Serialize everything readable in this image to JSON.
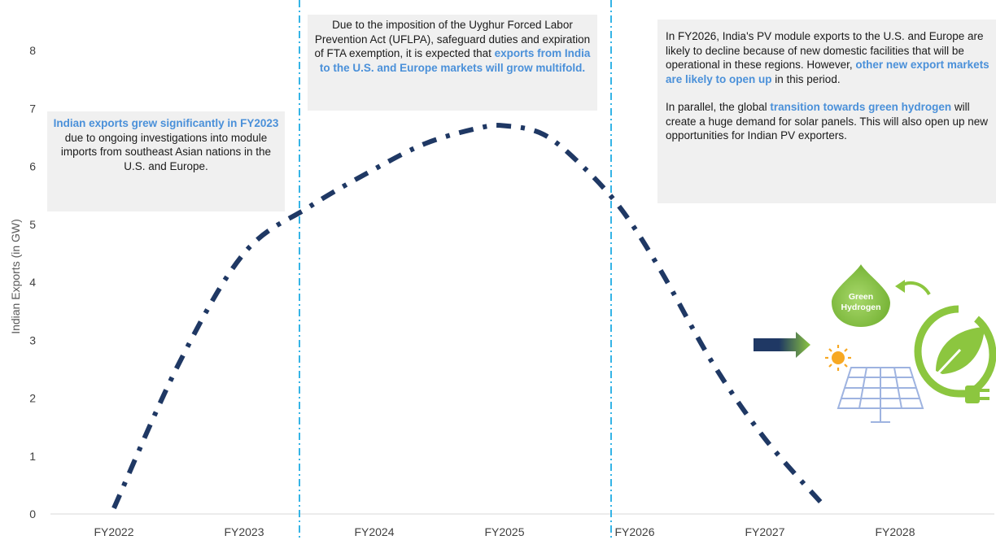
{
  "chart_data": {
    "type": "line",
    "ylabel": "Indian Exports (in GW)",
    "xlabel": "",
    "ylim": [
      0,
      8
    ],
    "yticks": [
      "0",
      "1",
      "2",
      "3",
      "4",
      "5",
      "6",
      "7",
      "8"
    ],
    "categories": [
      "FY2022",
      "FY2023",
      "FY2024",
      "FY2025",
      "FY2026",
      "FY2027",
      "FY2028"
    ],
    "grid": false,
    "series": [
      {
        "x": [
          0.0,
          0.5,
          1.0,
          1.5,
          2.0,
          2.4,
          2.8,
          3.0,
          3.3,
          3.6,
          3.9,
          4.2,
          4.6,
          5.0,
          5.45
        ],
        "values": [
          0.1,
          2.6,
          4.5,
          5.3,
          5.95,
          6.4,
          6.66,
          6.7,
          6.55,
          6.0,
          5.25,
          4.2,
          2.6,
          1.3,
          0.15
        ],
        "color": "#1f3864",
        "style": "dash-dot"
      }
    ]
  },
  "annotations": {
    "left": {
      "highlight": "Indian exports grew significantly in FY2023",
      "text": " due to ongoing investigations into module imports from southeast Asian nations in the U.S. and Europe."
    },
    "middle": {
      "text": "Due to the imposition of the Uyghur Forced Labor Prevention Act (UFLPA), safeguard duties and expiration of FTA exemption, it is expected that ",
      "highlight": "exports from India to the U.S. and Europe markets will grow multifold."
    },
    "right": {
      "p1_text_a": "In FY2026, India's PV module exports to the U.S. and Europe are likely to decline because of new domestic facilities that will be operational in these regions. However, ",
      "p1_highlight": "other new export markets are likely to open up",
      "p1_text_b": " in this period.",
      "p2_text_a": "In parallel, the global ",
      "p2_highlight": "transition towards green hydrogen",
      "p2_text_b": " will create a huge demand for solar panels. This will also open up new opportunities for Indian PV exporters."
    }
  },
  "illustration": {
    "drop_label_line1": "Green",
    "drop_label_line2": "Hydrogen",
    "icons": [
      "arrow-right-icon",
      "sun-icon",
      "solar-panel-icon",
      "green-hydrogen-drop-icon",
      "cycle-arrow-icon",
      "leaf-plug-icon"
    ],
    "colors": {
      "green": "#8cc63f",
      "navy": "#1f3864",
      "panel": "#9eb3e0",
      "sun": "#f7a823",
      "highlight": "#4a90d9",
      "divider": "#35b4e6"
    }
  }
}
